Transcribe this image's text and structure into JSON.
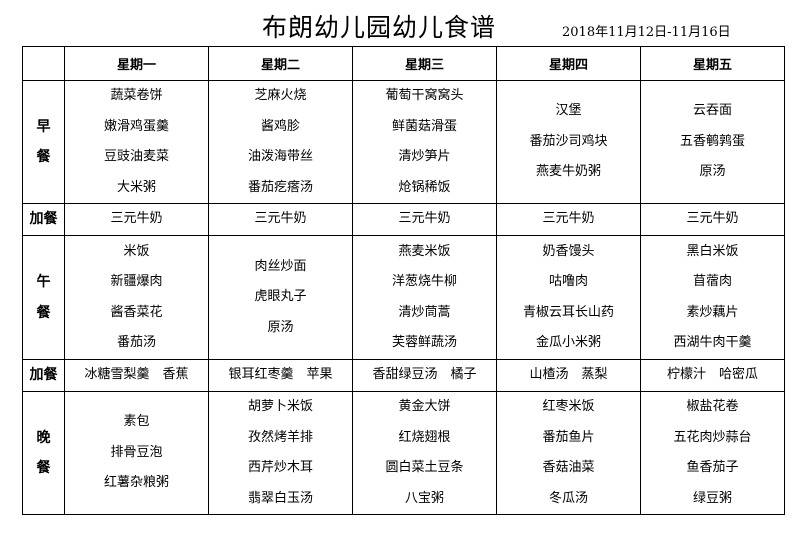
{
  "title": "布朗幼儿园幼儿食谱",
  "date_range": "2018年11月12日-11月16日",
  "days": [
    "星期一",
    "星期二",
    "星期三",
    "星期四",
    "星期五"
  ],
  "rows": [
    {
      "label": [
        "早",
        "餐"
      ],
      "type": "meal",
      "cells": [
        [
          "蔬菜卷饼",
          "嫩滑鸡蛋羹",
          "豆豉油麦菜",
          "大米粥"
        ],
        [
          "芝麻火烧",
          "酱鸡胗",
          "油泼海带丝",
          "番茄疙瘩汤"
        ],
        [
          "葡萄干窝窝头",
          "鲜菌菇滑蛋",
          "清炒笋片",
          "炝锅稀饭"
        ],
        [
          "汉堡",
          "番茄沙司鸡块",
          "燕麦牛奶粥"
        ],
        [
          "云吞面",
          "五香鹌鹑蛋",
          "原汤"
        ]
      ]
    },
    {
      "label": [
        "加餐"
      ],
      "type": "snack",
      "cells": [
        [
          "三元牛奶"
        ],
        [
          "三元牛奶"
        ],
        [
          "三元牛奶"
        ],
        [
          "三元牛奶"
        ],
        [
          "三元牛奶"
        ]
      ]
    },
    {
      "label": [
        "午",
        "餐"
      ],
      "type": "meal",
      "cells": [
        [
          "米饭",
          "新疆爆肉",
          "酱香菜花",
          "番茄汤"
        ],
        [
          "肉丝炒面",
          "虎眼丸子",
          "原汤"
        ],
        [
          "燕麦米饭",
          "洋葱烧牛柳",
          "清炒茼蒿",
          "芙蓉鲜蔬汤"
        ],
        [
          "奶香馒头",
          "咕噜肉",
          "青椒云耳长山药",
          "金瓜小米粥"
        ],
        [
          "黑白米饭",
          "苜蓿肉",
          "素炒藕片",
          "西湖牛肉干羹"
        ]
      ]
    },
    {
      "label": [
        "加餐"
      ],
      "type": "snack",
      "cells": [
        [
          "冰糖雪梨羹　香蕉"
        ],
        [
          "银耳红枣羹　苹果"
        ],
        [
          "香甜绿豆汤　橘子"
        ],
        [
          "山楂汤　蒸梨"
        ],
        [
          "柠檬汁　哈密瓜"
        ]
      ]
    },
    {
      "label": [
        "晚",
        "餐"
      ],
      "type": "meal",
      "cells": [
        [
          "素包",
          "排骨豆泡",
          "红薯杂粮粥"
        ],
        [
          "胡萝卜米饭",
          "孜然烤羊排",
          "西芹炒木耳",
          "翡翠白玉汤"
        ],
        [
          "黄金大饼",
          "红烧翅根",
          "圆白菜土豆条",
          "八宝粥"
        ],
        [
          "红枣米饭",
          "番茄鱼片",
          "香菇油菜",
          "冬瓜汤"
        ],
        [
          "椒盐花卷",
          "五花肉炒蒜台",
          "鱼香茄子",
          "绿豆粥"
        ]
      ]
    }
  ]
}
